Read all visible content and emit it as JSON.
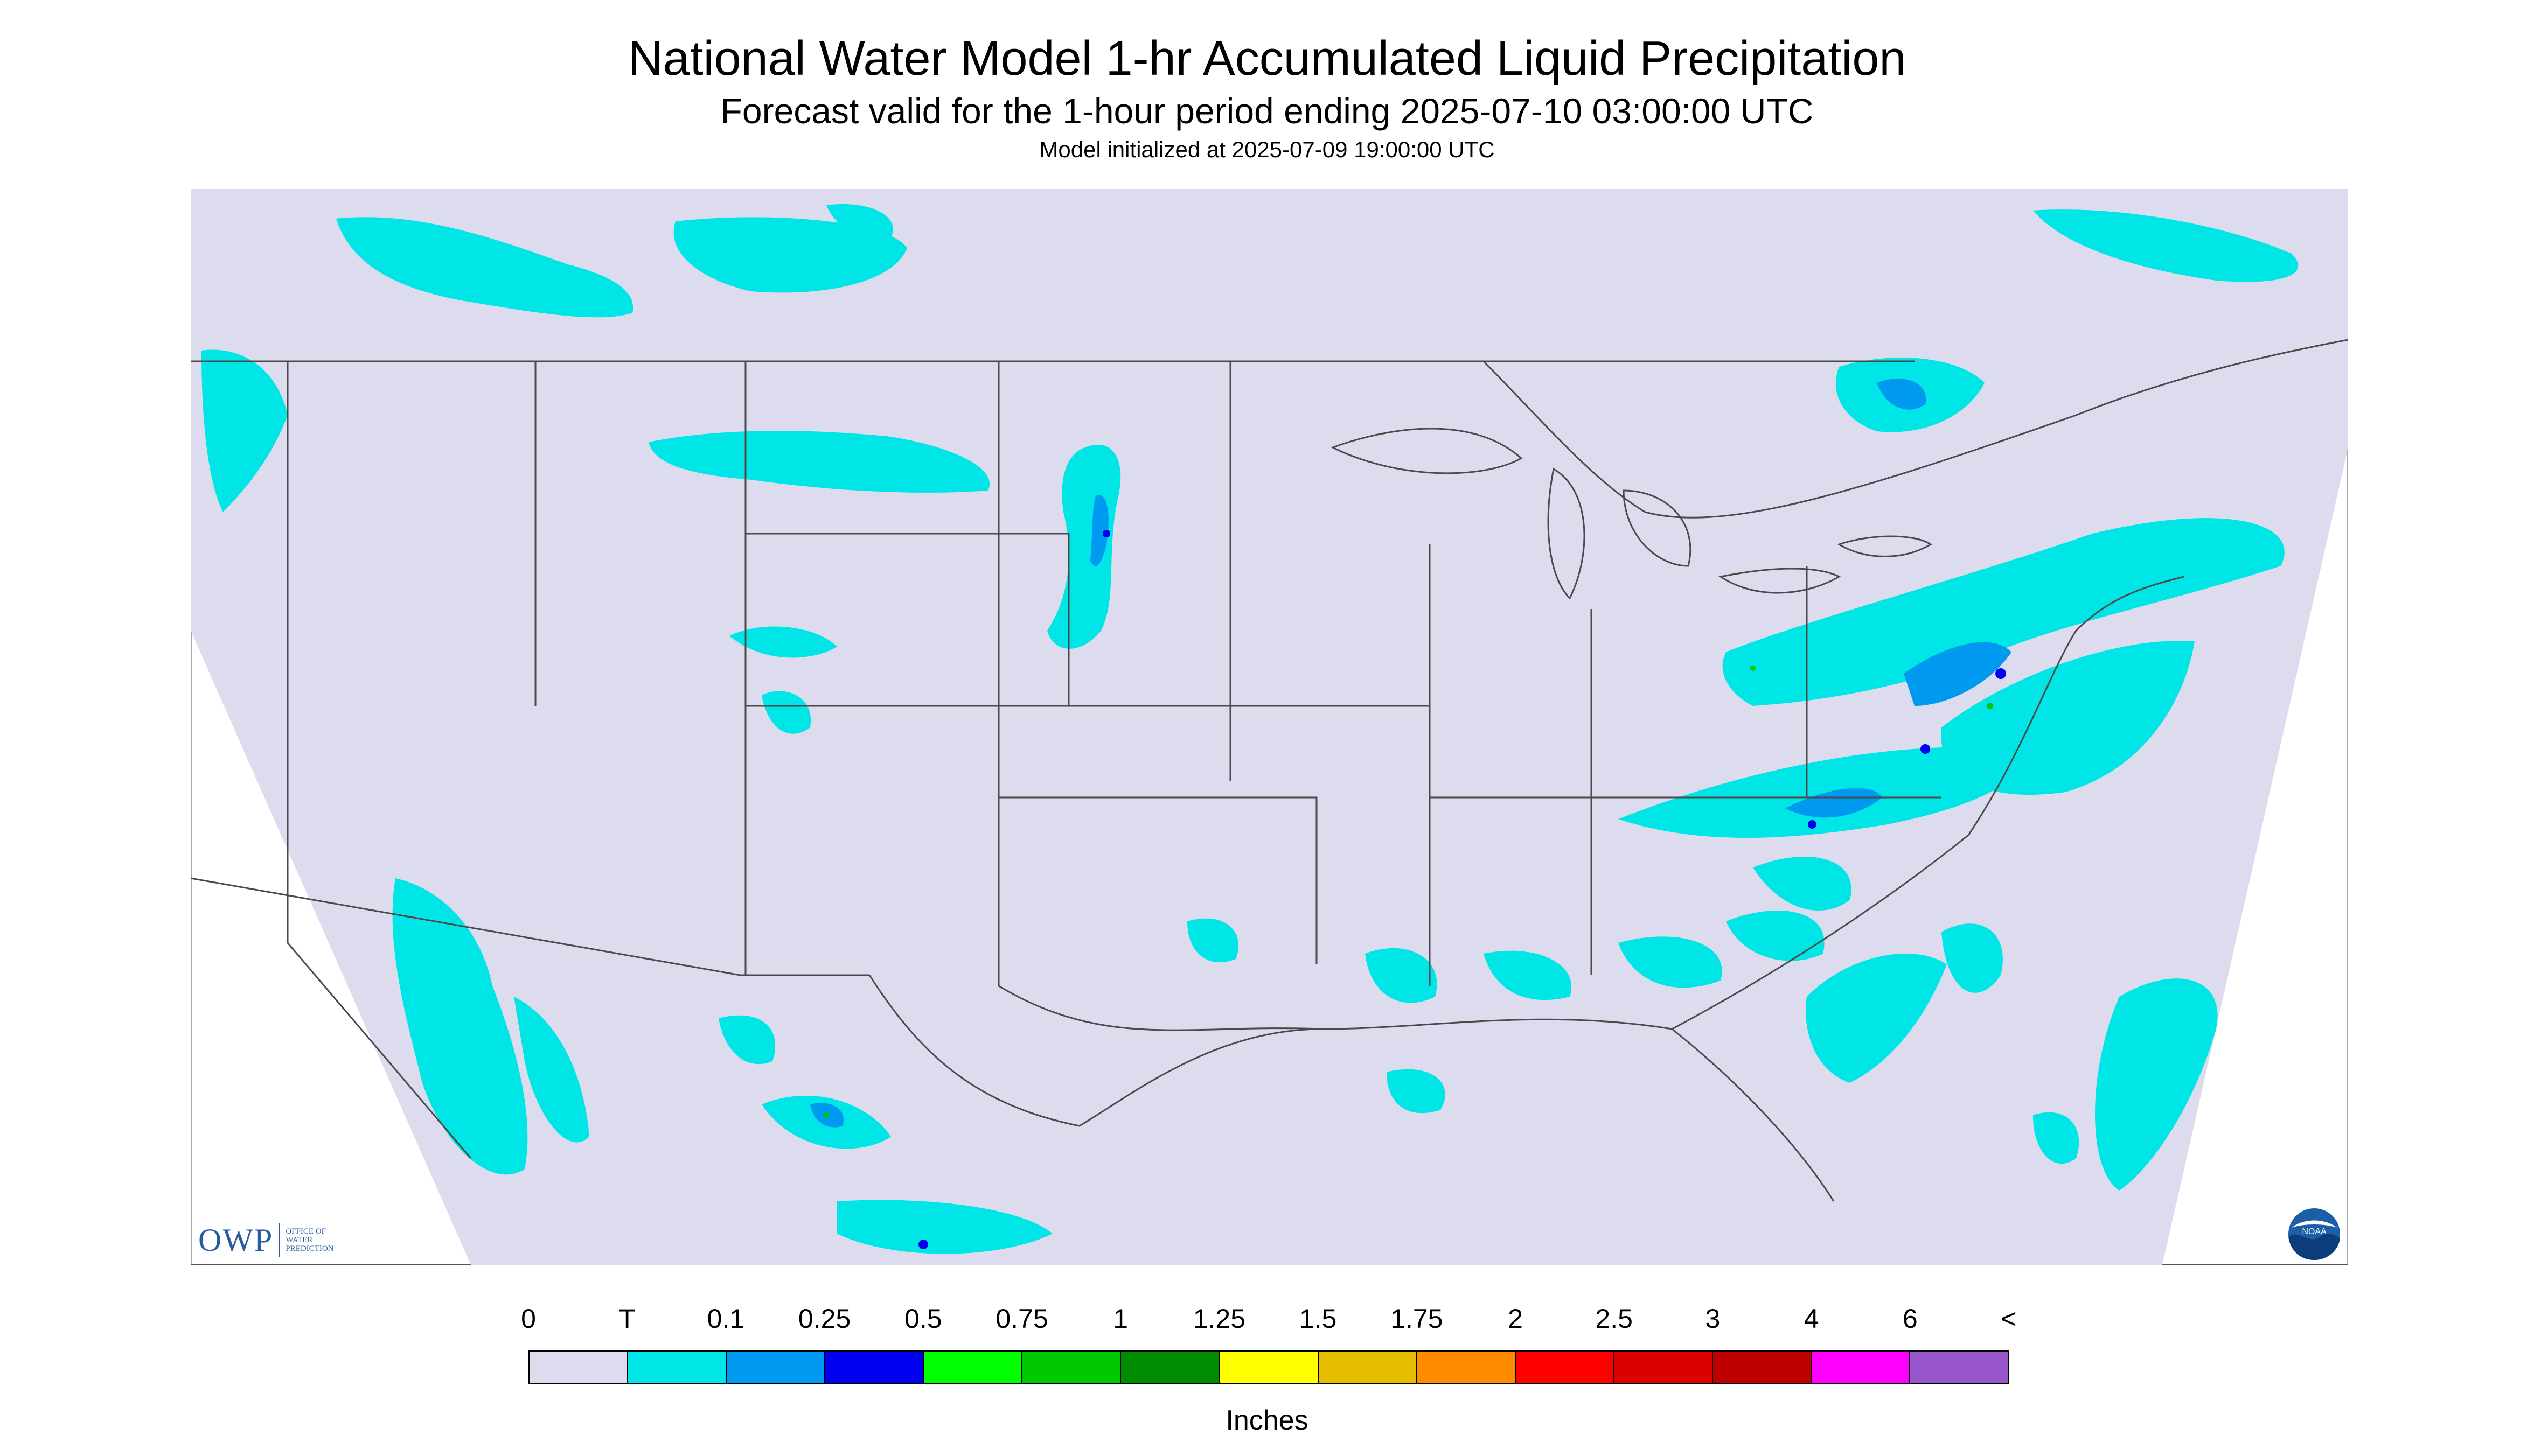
{
  "title": "National Water Model 1-hr Accumulated Liquid Precipitation",
  "subtitle": "Forecast valid for the 1-hour period ending 2025-07-10 03:00:00 UTC",
  "init_line": "Model initialized at 2025-07-09 19:00:00 UTC",
  "colors": {
    "background_domain": "#dcdcee",
    "outside_domain": "#ffffff",
    "state_lines": "#4a4a4a",
    "precip_trace": "#00e5e5",
    "precip_light": "#0099f0",
    "precip_heavy": "#0000f0"
  },
  "logos": {
    "owp": {
      "mark": "OWP",
      "lines": [
        "OFFICE OF",
        "WATER",
        "PREDICTION"
      ]
    },
    "noaa": {
      "mark": "NOAA",
      "icon": "noaa-logo-icon"
    }
  },
  "colorbar": {
    "labels": [
      "0",
      "T",
      "0.1",
      "0.25",
      "0.5",
      "0.75",
      "1",
      "1.25",
      "1.5",
      "1.75",
      "2",
      "2.5",
      "3",
      "4",
      "6",
      "<"
    ],
    "colors": [
      "#dcdcee",
      "#00e5e5",
      "#0099f0",
      "#0000f0",
      "#00ff00",
      "#00c800",
      "#008c00",
      "#ffff00",
      "#e6be00",
      "#ff8c00",
      "#ff0000",
      "#dc0000",
      "#be0000",
      "#ff00ff",
      "#9955cc"
    ],
    "units_label": "Inches"
  }
}
